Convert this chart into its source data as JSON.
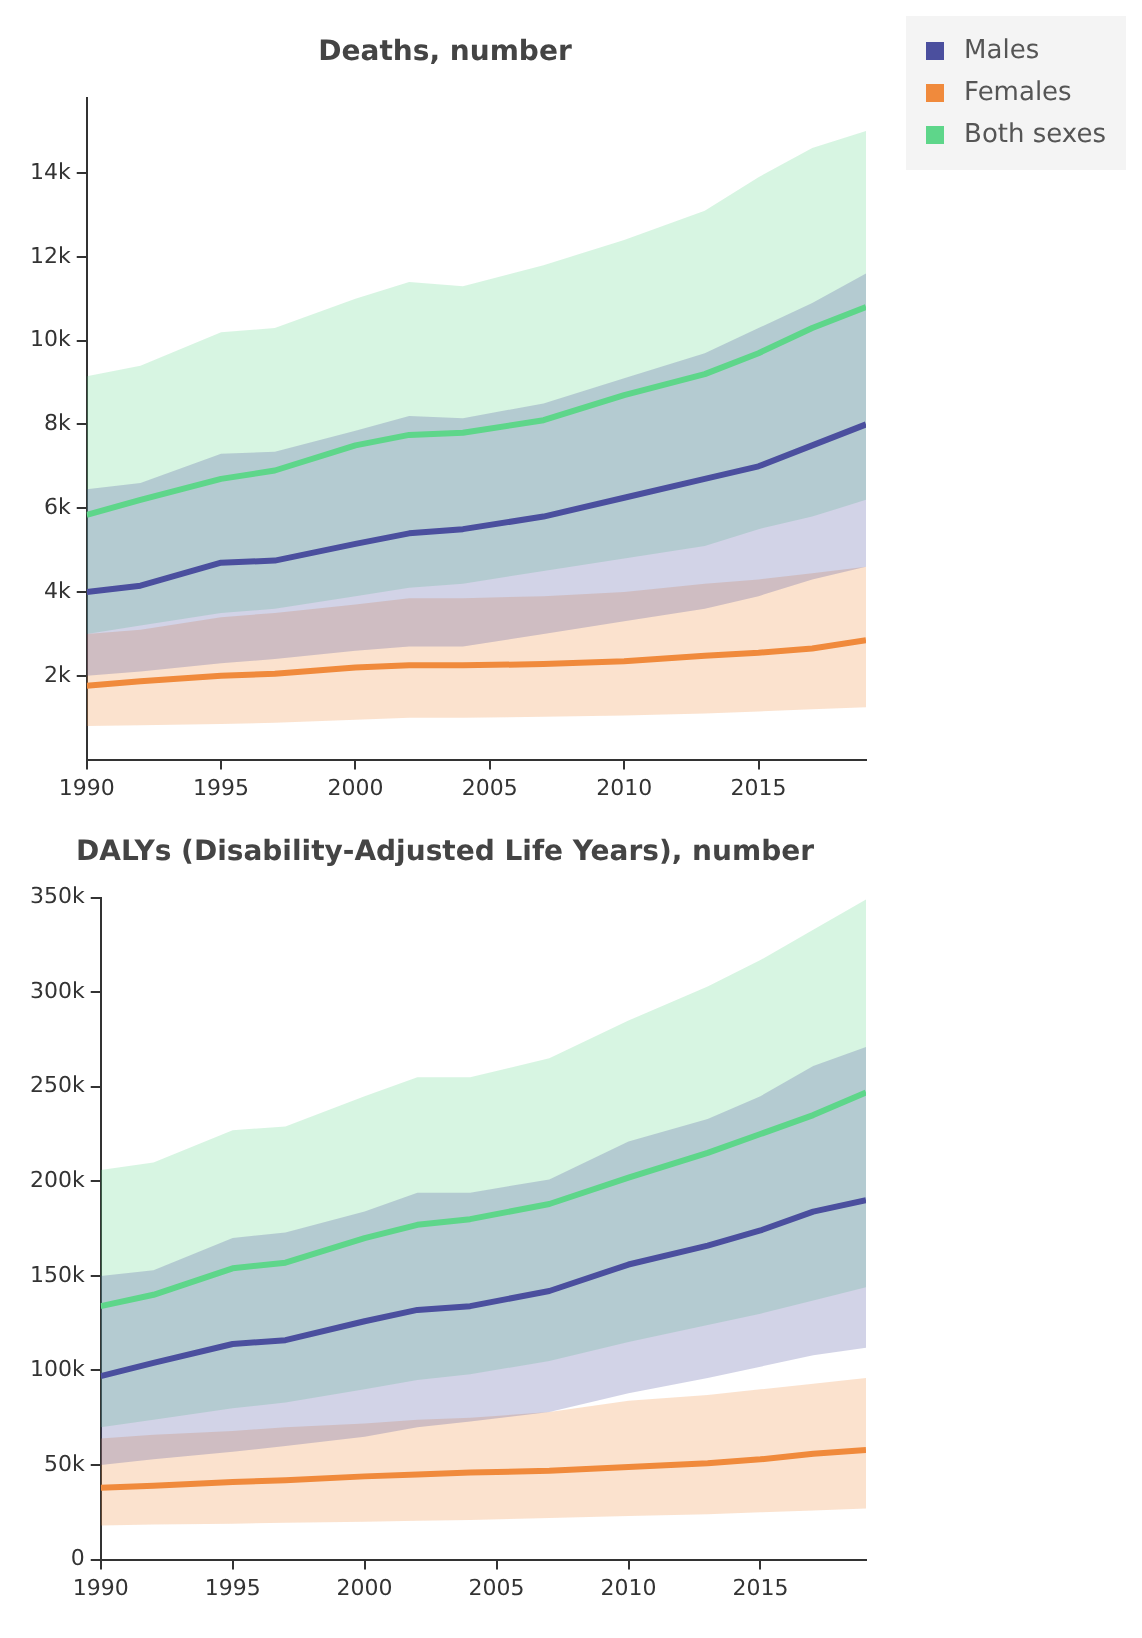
{
  "chart_data": [
    {
      "type": "line",
      "title": "Deaths, number",
      "x": [
        1990,
        1992,
        1995,
        1997,
        2000,
        2002,
        2004,
        2007,
        2010,
        2013,
        2015,
        2017,
        2019
      ],
      "xlim": [
        1990,
        2019
      ],
      "xticks": [
        1990,
        1995,
        2000,
        2005,
        2010,
        2015
      ],
      "ylim": [
        0,
        15800
      ],
      "yticks": [
        {
          "value": 2000,
          "label": "2k"
        },
        {
          "value": 4000,
          "label": "4k"
        },
        {
          "value": 6000,
          "label": "6k"
        },
        {
          "value": 8000,
          "label": "8k"
        },
        {
          "value": 10000,
          "label": "10k"
        },
        {
          "value": 12000,
          "label": "12k"
        },
        {
          "value": 14000,
          "label": "14k"
        }
      ],
      "grid": false,
      "legend": "top right",
      "series": [
        {
          "name": "Males",
          "color": "#4b4f9e",
          "values": [
            4000,
            4150,
            4700,
            4750,
            5150,
            5400,
            5500,
            5800,
            6250,
            6700,
            7000,
            7500,
            8000
          ],
          "lower": [
            2000,
            2100,
            2300,
            2400,
            2600,
            2700,
            2700,
            3000,
            3300,
            3600,
            3900,
            4300,
            4600
          ],
          "upper": [
            6450,
            6600,
            7300,
            7350,
            7850,
            8200,
            8150,
            8500,
            9100,
            9700,
            10300,
            10900,
            11600
          ]
        },
        {
          "name": "Females",
          "color": "#f08a3c",
          "values": [
            1760,
            1870,
            2000,
            2050,
            2200,
            2250,
            2250,
            2280,
            2350,
            2480,
            2550,
            2650,
            2850
          ],
          "lower": [
            800,
            820,
            850,
            880,
            950,
            1000,
            1000,
            1020,
            1050,
            1100,
            1150,
            1200,
            1250
          ],
          "upper": [
            3000,
            3100,
            3400,
            3500,
            3700,
            3850,
            3850,
            3900,
            4000,
            4200,
            4300,
            4450,
            4600
          ]
        },
        {
          "name": "Both sexes",
          "color": "#5ed68a",
          "values": [
            5840,
            6200,
            6700,
            6900,
            7500,
            7750,
            7800,
            8100,
            8700,
            9200,
            9700,
            10300,
            10800
          ],
          "lower": [
            3000,
            3200,
            3500,
            3600,
            3900,
            4100,
            4200,
            4500,
            4800,
            5100,
            5500,
            5800,
            6200
          ],
          "upper": [
            9150,
            9400,
            10200,
            10300,
            11000,
            11400,
            11300,
            11800,
            12400,
            13100,
            13900,
            14600,
            15000
          ]
        }
      ]
    },
    {
      "type": "line",
      "title": "DALYs (Disability-Adjusted Life Years), number",
      "x": [
        1990,
        1992,
        1995,
        1997,
        2000,
        2002,
        2004,
        2007,
        2010,
        2013,
        2015,
        2017,
        2019
      ],
      "xlim": [
        1990,
        2019
      ],
      "xticks": [
        1990,
        1995,
        2000,
        2005,
        2010,
        2015
      ],
      "ylim": [
        0,
        350000
      ],
      "yticks": [
        0,
        {
          "value": 50000,
          "label": "50k"
        },
        {
          "value": 100000,
          "label": "100k"
        },
        {
          "value": 150000,
          "label": "150k"
        },
        {
          "value": 200000,
          "label": "200k"
        },
        {
          "value": 250000,
          "label": "250k"
        },
        {
          "value": 300000,
          "label": "300k"
        },
        {
          "value": 350000,
          "label": "350k"
        }
      ],
      "grid": false,
      "series": [
        {
          "color": "#4b4f9e",
          "values": [
            97000,
            104000,
            114000,
            116000,
            126000,
            132000,
            134000,
            142000,
            156000,
            166000,
            174000,
            184000,
            190000
          ],
          "lower": [
            50000,
            53000,
            57000,
            60000,
            65000,
            70000,
            73000,
            78000,
            88000,
            96000,
            102000,
            108000,
            112000
          ],
          "upper": [
            150000,
            153000,
            170000,
            173000,
            184000,
            194000,
            194000,
            201000,
            221000,
            233000,
            245000,
            261000,
            271000
          ]
        },
        {
          "color": "#f08a3c",
          "values": [
            38000,
            39000,
            41000,
            42000,
            44000,
            45000,
            46000,
            47000,
            49000,
            51000,
            53000,
            56000,
            58000
          ],
          "lower": [
            18000,
            18500,
            19000,
            19500,
            20000,
            20500,
            21000,
            22000,
            23000,
            24000,
            25000,
            26000,
            27000
          ],
          "upper": [
            64000,
            66000,
            68000,
            70000,
            72000,
            74000,
            75000,
            78000,
            84000,
            87000,
            90000,
            93000,
            96000
          ]
        },
        {
          "color": "#5ed68a",
          "values": [
            134000,
            140000,
            154000,
            157000,
            170000,
            177000,
            180000,
            188000,
            202000,
            215000,
            225000,
            235000,
            247000
          ],
          "lower": [
            70000,
            74000,
            80000,
            83000,
            90000,
            95000,
            98000,
            105000,
            115000,
            124000,
            130000,
            137000,
            144000
          ],
          "upper": [
            206000,
            210000,
            227000,
            229000,
            245000,
            255000,
            255000,
            265000,
            285000,
            303000,
            317000,
            333000,
            349000
          ]
        }
      ]
    }
  ]
}
